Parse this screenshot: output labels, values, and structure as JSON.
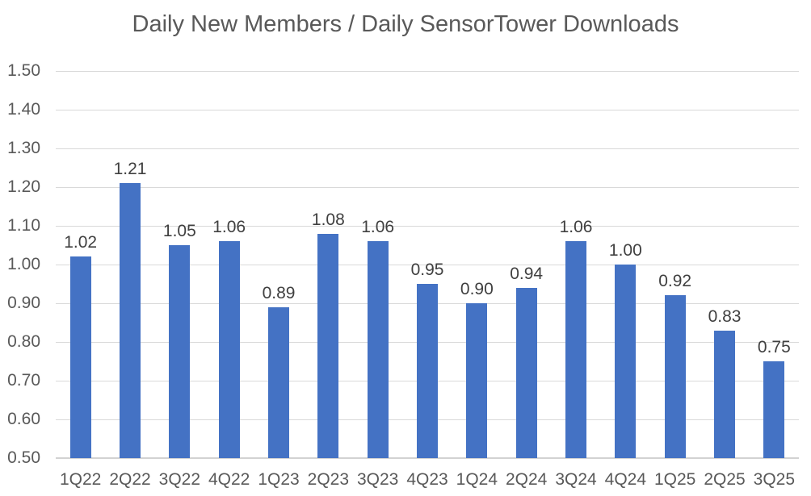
{
  "title": "Daily New Members / Daily SensorTower Downloads",
  "chart_data": {
    "type": "bar",
    "title": "Daily New Members / Daily SensorTower Downloads",
    "categories": [
      "1Q22",
      "2Q22",
      "3Q22",
      "4Q22",
      "1Q23",
      "2Q23",
      "3Q23",
      "4Q23",
      "1Q24",
      "2Q24",
      "3Q24",
      "4Q24",
      "1Q25",
      "2Q25",
      "3Q25"
    ],
    "values": [
      1.02,
      1.21,
      1.05,
      1.06,
      0.89,
      1.08,
      1.06,
      0.95,
      0.9,
      0.94,
      1.06,
      1.0,
      0.92,
      0.83,
      0.75
    ],
    "data_labels": [
      "1.02",
      "1.21",
      "1.05",
      "1.06",
      "0.89",
      "1.08",
      "1.06",
      "0.95",
      "0.90",
      "0.94",
      "1.06",
      "1.00",
      "0.92",
      "0.83",
      "0.75"
    ],
    "xlabel": "",
    "ylabel": "",
    "ylim": [
      0.5,
      1.5
    ],
    "ytick_step": 0.1,
    "ytick_labels": [
      "0.50",
      "0.60",
      "0.70",
      "0.80",
      "0.90",
      "1.00",
      "1.10",
      "1.20",
      "1.30",
      "1.40",
      "1.50"
    ],
    "grid": true,
    "legend": false,
    "colors": {
      "bar": "#4472c4",
      "title": "#595959",
      "axis_labels": "#595959",
      "data_labels": "#404040",
      "gridline": "#d9d9d9",
      "axis_line": "#d2d2d2",
      "background": "#ffffff"
    }
  }
}
